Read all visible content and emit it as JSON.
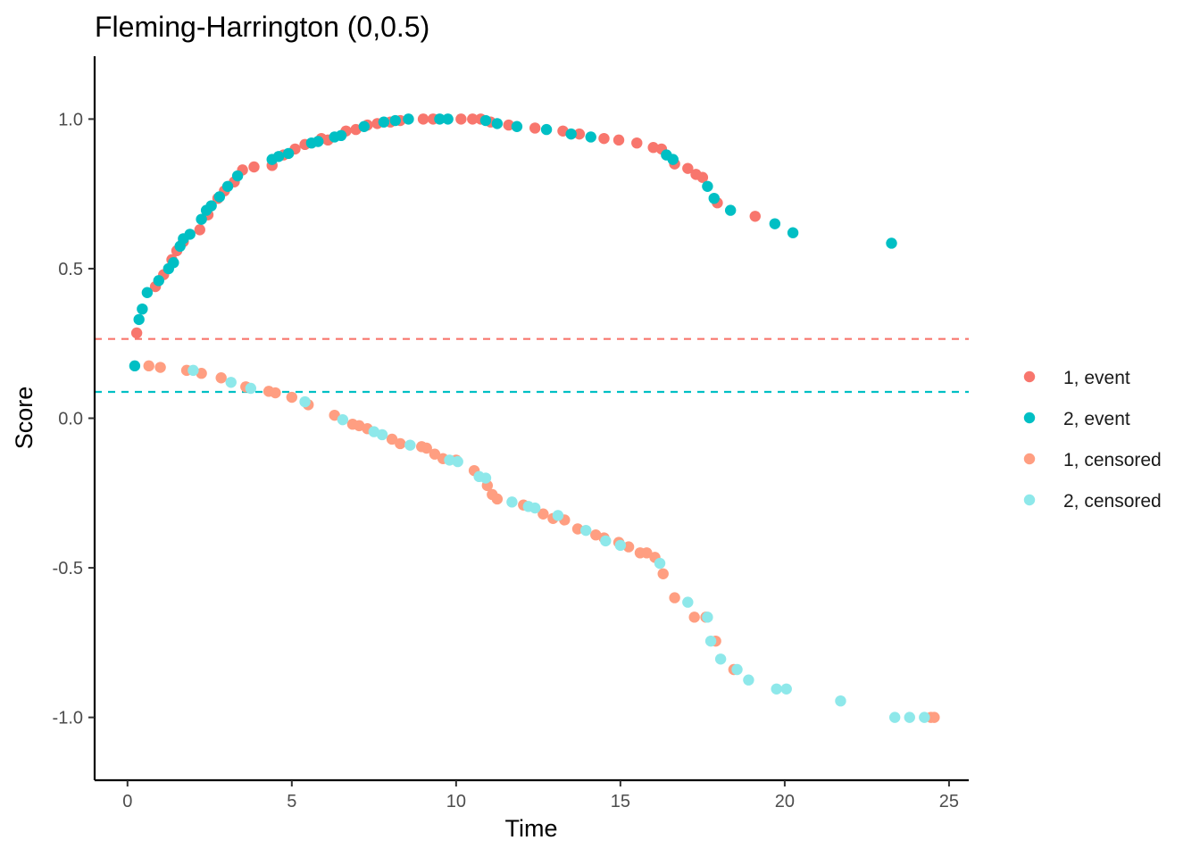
{
  "chart_data": {
    "type": "scatter",
    "title": "Fleming-Harrington (0,0.5)",
    "xlabel": "Time",
    "ylabel": "Score",
    "xlim": [
      -1,
      25.6
    ],
    "ylim": [
      -1.21,
      1.21
    ],
    "x_ticks": [
      0,
      5,
      10,
      15,
      20,
      25
    ],
    "x_tick_labels": [
      "0",
      "5",
      "10",
      "15",
      "20",
      "25"
    ],
    "y_ticks": [
      -1.0,
      -0.5,
      0.0,
      0.5,
      1.0
    ],
    "y_tick_labels": [
      "-1.0",
      "-0.5",
      "0.0",
      "0.5",
      "1.0"
    ],
    "grid": false,
    "legend_position": "right",
    "reference_lines": [
      {
        "y": 0.265,
        "color": "#F8766D",
        "style": "dashed"
      },
      {
        "y": 0.088,
        "color": "#00BFC4",
        "style": "dashed"
      }
    ],
    "series": [
      {
        "name": "1, event",
        "color": "#F8766D",
        "points": [
          [
            0.28,
            0.285
          ],
          [
            0.85,
            0.44
          ],
          [
            1.1,
            0.48
          ],
          [
            1.35,
            0.53
          ],
          [
            1.5,
            0.56
          ],
          [
            1.7,
            0.59
          ],
          [
            2.2,
            0.63
          ],
          [
            2.45,
            0.68
          ],
          [
            2.75,
            0.735
          ],
          [
            2.95,
            0.76
          ],
          [
            3.25,
            0.79
          ],
          [
            3.5,
            0.83
          ],
          [
            3.85,
            0.84
          ],
          [
            4.4,
            0.845
          ],
          [
            4.75,
            0.88
          ],
          [
            5.1,
            0.9
          ],
          [
            5.4,
            0.915
          ],
          [
            5.9,
            0.935
          ],
          [
            6.1,
            0.93
          ],
          [
            6.65,
            0.96
          ],
          [
            6.95,
            0.965
          ],
          [
            7.3,
            0.98
          ],
          [
            7.6,
            0.985
          ],
          [
            8.0,
            0.99
          ],
          [
            8.3,
            0.995
          ],
          [
            9.0,
            1.0
          ],
          [
            9.3,
            1.0
          ],
          [
            10.15,
            1.0
          ],
          [
            10.5,
            1.0
          ],
          [
            10.75,
            1.0
          ],
          [
            11.05,
            0.99
          ],
          [
            11.6,
            0.98
          ],
          [
            12.4,
            0.97
          ],
          [
            13.25,
            0.96
          ],
          [
            13.75,
            0.95
          ],
          [
            14.5,
            0.935
          ],
          [
            14.95,
            0.93
          ],
          [
            15.5,
            0.92
          ],
          [
            16.0,
            0.905
          ],
          [
            16.25,
            0.9
          ],
          [
            16.65,
            0.85
          ],
          [
            17.05,
            0.835
          ],
          [
            17.3,
            0.815
          ],
          [
            17.5,
            0.805
          ],
          [
            17.95,
            0.72
          ],
          [
            19.1,
            0.675
          ]
        ]
      },
      {
        "name": "2, event",
        "color": "#00BFC4",
        "points": [
          [
            0.22,
            0.175
          ],
          [
            0.35,
            0.33
          ],
          [
            0.45,
            0.365
          ],
          [
            0.6,
            0.42
          ],
          [
            0.95,
            0.46
          ],
          [
            1.25,
            0.5
          ],
          [
            1.4,
            0.52
          ],
          [
            1.6,
            0.575
          ],
          [
            1.7,
            0.6
          ],
          [
            1.9,
            0.615
          ],
          [
            2.25,
            0.665
          ],
          [
            2.4,
            0.695
          ],
          [
            2.55,
            0.71
          ],
          [
            2.8,
            0.74
          ],
          [
            3.05,
            0.775
          ],
          [
            3.35,
            0.81
          ],
          [
            4.4,
            0.865
          ],
          [
            4.6,
            0.875
          ],
          [
            4.9,
            0.885
          ],
          [
            5.6,
            0.92
          ],
          [
            5.8,
            0.925
          ],
          [
            6.3,
            0.94
          ],
          [
            6.5,
            0.945
          ],
          [
            7.2,
            0.975
          ],
          [
            7.8,
            0.99
          ],
          [
            8.15,
            0.995
          ],
          [
            8.55,
            1.0
          ],
          [
            9.5,
            1.0
          ],
          [
            9.75,
            1.0
          ],
          [
            10.9,
            0.995
          ],
          [
            11.25,
            0.985
          ],
          [
            11.85,
            0.975
          ],
          [
            12.75,
            0.965
          ],
          [
            13.5,
            0.95
          ],
          [
            14.1,
            0.94
          ],
          [
            16.4,
            0.88
          ],
          [
            16.6,
            0.865
          ],
          [
            17.65,
            0.775
          ],
          [
            17.85,
            0.735
          ],
          [
            18.35,
            0.695
          ],
          [
            19.7,
            0.65
          ],
          [
            20.25,
            0.62
          ],
          [
            23.25,
            0.585
          ]
        ]
      },
      {
        "name": "1, censored",
        "color": "#FF9E81",
        "points": [
          [
            0.65,
            0.175
          ],
          [
            1.0,
            0.17
          ],
          [
            1.8,
            0.16
          ],
          [
            2.25,
            0.15
          ],
          [
            2.85,
            0.135
          ],
          [
            3.6,
            0.105
          ],
          [
            4.3,
            0.09
          ],
          [
            4.5,
            0.085
          ],
          [
            5.0,
            0.07
          ],
          [
            5.5,
            0.045
          ],
          [
            6.3,
            0.01
          ],
          [
            6.85,
            -0.02
          ],
          [
            7.05,
            -0.025
          ],
          [
            7.3,
            -0.035
          ],
          [
            8.05,
            -0.07
          ],
          [
            8.3,
            -0.085
          ],
          [
            8.95,
            -0.095
          ],
          [
            9.1,
            -0.1
          ],
          [
            9.35,
            -0.12
          ],
          [
            9.6,
            -0.135
          ],
          [
            10.0,
            -0.14
          ],
          [
            10.55,
            -0.175
          ],
          [
            10.95,
            -0.225
          ],
          [
            11.1,
            -0.255
          ],
          [
            11.25,
            -0.27
          ],
          [
            12.05,
            -0.29
          ],
          [
            12.65,
            -0.32
          ],
          [
            12.95,
            -0.335
          ],
          [
            13.3,
            -0.34
          ],
          [
            13.7,
            -0.37
          ],
          [
            14.25,
            -0.39
          ],
          [
            14.5,
            -0.4
          ],
          [
            14.95,
            -0.415
          ],
          [
            15.25,
            -0.43
          ],
          [
            15.6,
            -0.45
          ],
          [
            15.8,
            -0.45
          ],
          [
            16.05,
            -0.465
          ],
          [
            16.3,
            -0.52
          ],
          [
            16.65,
            -0.6
          ],
          [
            17.25,
            -0.665
          ],
          [
            17.6,
            -0.665
          ],
          [
            17.9,
            -0.745
          ],
          [
            18.45,
            -0.84
          ],
          [
            24.45,
            -1.0
          ],
          [
            24.55,
            -1.0
          ]
        ]
      },
      {
        "name": "2, censored",
        "color": "#8EE8EA",
        "points": [
          [
            2.0,
            0.16
          ],
          [
            3.15,
            0.12
          ],
          [
            3.75,
            0.1
          ],
          [
            5.4,
            0.055
          ],
          [
            6.55,
            -0.005
          ],
          [
            7.5,
            -0.045
          ],
          [
            7.75,
            -0.055
          ],
          [
            8.6,
            -0.09
          ],
          [
            9.8,
            -0.14
          ],
          [
            10.05,
            -0.145
          ],
          [
            10.7,
            -0.195
          ],
          [
            10.9,
            -0.2
          ],
          [
            11.7,
            -0.28
          ],
          [
            12.2,
            -0.295
          ],
          [
            12.4,
            -0.3
          ],
          [
            13.1,
            -0.325
          ],
          [
            13.95,
            -0.375
          ],
          [
            14.55,
            -0.41
          ],
          [
            15.0,
            -0.425
          ],
          [
            16.2,
            -0.485
          ],
          [
            17.05,
            -0.615
          ],
          [
            17.65,
            -0.665
          ],
          [
            17.75,
            -0.745
          ],
          [
            18.05,
            -0.805
          ],
          [
            18.55,
            -0.84
          ],
          [
            18.9,
            -0.875
          ],
          [
            19.75,
            -0.905
          ],
          [
            20.05,
            -0.905
          ],
          [
            21.7,
            -0.945
          ],
          [
            23.35,
            -1.0
          ],
          [
            23.8,
            -1.0
          ],
          [
            24.25,
            -1.0
          ]
        ]
      }
    ]
  }
}
